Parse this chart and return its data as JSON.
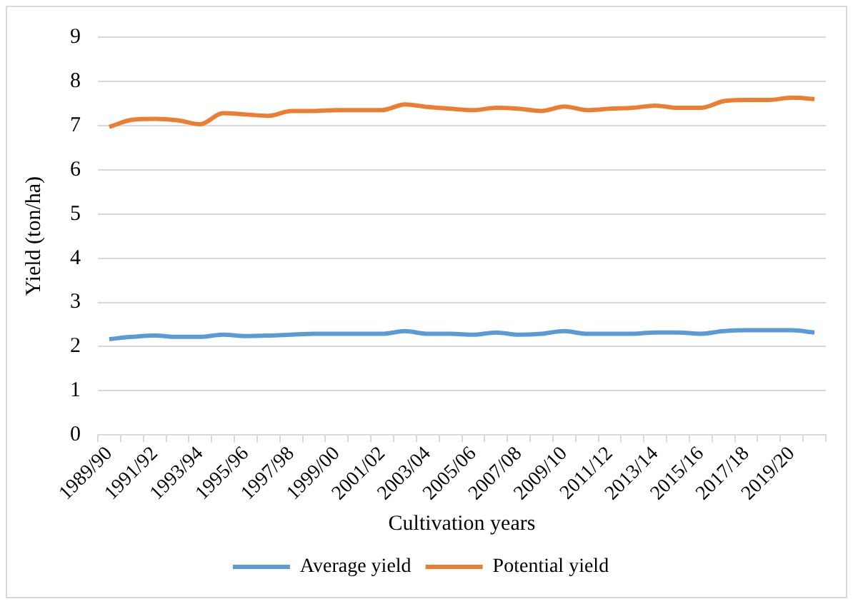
{
  "chart_data": {
    "type": "line",
    "xlabel": "Cultivation years",
    "ylabel": "Yield (ton/ha)",
    "categories": [
      "1989/90",
      null,
      "1991/92",
      null,
      "1993/94",
      null,
      "1995/96",
      null,
      "1997/98",
      null,
      "1999/00",
      null,
      "2001/02",
      null,
      "2003/04",
      null,
      "2005/06",
      null,
      "2007/08",
      null,
      "2009/10",
      null,
      "2011/12",
      null,
      "2013/14",
      null,
      "2015/16",
      null,
      "2017/18",
      null,
      "2019/20",
      null
    ],
    "series": [
      {
        "name": "Average yield",
        "color": "#5b9bd5",
        "values": [
          2.17,
          2.22,
          2.25,
          2.22,
          2.22,
          2.27,
          2.24,
          2.25,
          2.27,
          2.29,
          2.29,
          2.29,
          2.29,
          2.35,
          2.29,
          2.29,
          2.27,
          2.32,
          2.27,
          2.29,
          2.35,
          2.29,
          2.29,
          2.29,
          2.32,
          2.32,
          2.29,
          2.35,
          2.37,
          2.37,
          2.37,
          2.32
        ]
      },
      {
        "name": "Potential yield",
        "color": "#ed7d31",
        "values": [
          6.97,
          7.13,
          7.15,
          7.12,
          7.03,
          7.28,
          7.25,
          7.22,
          7.33,
          7.33,
          7.35,
          7.35,
          7.35,
          7.48,
          7.42,
          7.38,
          7.35,
          7.4,
          7.38,
          7.33,
          7.43,
          7.35,
          7.38,
          7.4,
          7.45,
          7.4,
          7.4,
          7.55,
          7.58,
          7.58,
          7.63,
          7.6
        ]
      }
    ],
    "ylim": [
      0,
      9
    ],
    "yticks": [
      0,
      1,
      2,
      3,
      4,
      5,
      6,
      7,
      8,
      9
    ],
    "grid": "y",
    "legend": "bottom",
    "marker": "none",
    "line_style": "solid"
  }
}
